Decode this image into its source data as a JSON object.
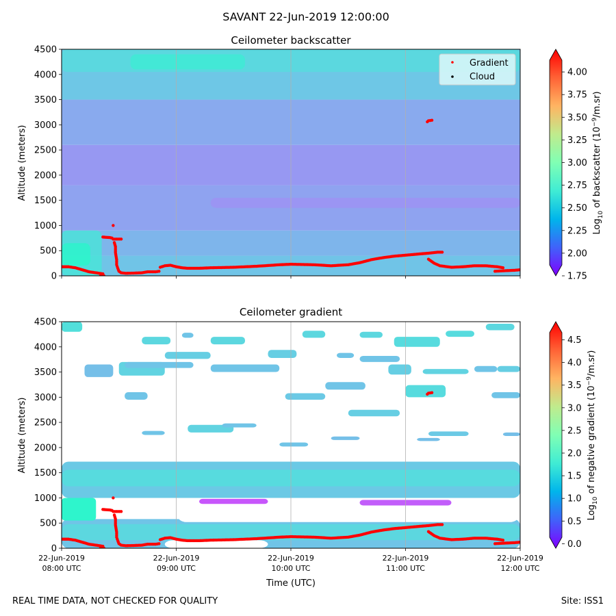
{
  "suptitle": "SAVANT 22-Jun-2019 12:00:00",
  "footer_left": "REAL TIME DATA, NOT CHECKED FOR QUALITY",
  "footer_right": "Site: ISS1",
  "x_label": "Time (UTC)",
  "x_ticks": [
    {
      "t": 8,
      "line1": "22-Jun-2019",
      "line2": "08:00 UTC"
    },
    {
      "t": 9,
      "line1": "22-Jun-2019",
      "line2": "09:00 UTC"
    },
    {
      "t": 10,
      "line1": "22-Jun-2019",
      "line2": "10:00 UTC"
    },
    {
      "t": 11,
      "line1": "22-Jun-2019",
      "line2": "11:00 UTC"
    },
    {
      "t": 12,
      "line1": "22-Jun-2019",
      "line2": "12:00 UTC"
    }
  ],
  "chart_data": [
    {
      "type": "heatmap",
      "title": "Ceilometer backscatter",
      "ylabel": "Altitude (meters)",
      "xlim": [
        8,
        12
      ],
      "ylim": [
        0,
        4500
      ],
      "yticks": [
        0,
        500,
        1000,
        1500,
        2000,
        2500,
        3000,
        3500,
        4000,
        4500
      ],
      "grid": "vertical at hours",
      "colorbar": {
        "label": "Log10 of backscatter (10^-9/m.sr)",
        "label_parts": [
          "Log",
          "10",
          " of backscatter (10",
          "−9",
          "/m.sr)"
        ],
        "min": 1.75,
        "max": 4.25,
        "ticks": [
          "1.75",
          "2.00",
          "2.25",
          "2.50",
          "2.75",
          "3.00",
          "3.25",
          "3.50",
          "3.75",
          "4.00"
        ],
        "colormap": "rainbow"
      },
      "legend": {
        "placement": "top-right",
        "entries": [
          {
            "label": "Gradient",
            "color": "#ff0000"
          },
          {
            "label": "Cloud",
            "color": "#000000"
          }
        ]
      },
      "background_bands": [
        {
          "y0": 0,
          "y1": 400,
          "value": 2.45
        },
        {
          "y0": 400,
          "y1": 900,
          "value": 2.38
        },
        {
          "y0": 900,
          "y1": 1800,
          "value": 2.3
        },
        {
          "y0": 1800,
          "y1": 2600,
          "value": 2.26
        },
        {
          "y0": 2600,
          "y1": 3500,
          "value": 2.33
        },
        {
          "y0": 3500,
          "y1": 4500,
          "value": 2.46
        }
      ],
      "features": [
        {
          "t0": 8.0,
          "t1": 8.35,
          "y0": 0,
          "y1": 900,
          "value": 2.68
        },
        {
          "t0": 8.0,
          "t1": 8.25,
          "y0": 200,
          "y1": 650,
          "value": 2.82
        },
        {
          "t0": 8.0,
          "t1": 12.0,
          "y0": 4050,
          "y1": 4500,
          "value": 2.6
        },
        {
          "t0": 8.6,
          "t1": 9.6,
          "y0": 4100,
          "y1": 4400,
          "value": 2.72
        },
        {
          "t0": 9.3,
          "t1": 12.0,
          "y0": 1350,
          "y1": 1550,
          "value": 2.22
        }
      ]
    },
    {
      "type": "heatmap",
      "title": "Ceilometer gradient",
      "ylabel": "Altitude (meters)",
      "xlim": [
        8,
        12
      ],
      "ylim": [
        0,
        4500
      ],
      "yticks": [
        0,
        500,
        1000,
        1500,
        2000,
        2500,
        3000,
        3500,
        4000,
        4500
      ],
      "grid": "vertical at hours",
      "colorbar": {
        "label": "Log10 of negative gradient (10^-9/m.sr)",
        "label_parts": [
          "Log",
          "10",
          " of negative gradient (10",
          "−9",
          "/m.sr)"
        ],
        "min": -0.1,
        "max": 4.9,
        "ticks": [
          "0.0",
          "0.5",
          "1.0",
          "1.5",
          "2.0",
          "2.5",
          "3.0",
          "3.5",
          "4.0",
          "4.5"
        ],
        "colormap": "rainbow"
      },
      "layers": [
        {
          "y0": 1000,
          "y1": 1720,
          "value": 1.35
        },
        {
          "y0": 1230,
          "y1": 1560,
          "value": 1.55
        },
        {
          "y0": 0,
          "y1": 580,
          "value": 1.3
        },
        {
          "y0": 160,
          "y1": 480,
          "value": 1.5
        }
      ],
      "gaps": [
        {
          "t0": 9.0,
          "t1": 12.0,
          "y0": 520,
          "y1": 960,
          "value": null
        },
        {
          "t0": 8.9,
          "t1": 9.8,
          "y0": 0,
          "y1": 160,
          "value": null
        }
      ],
      "patches": [
        {
          "t0": 8.0,
          "t1": 8.18,
          "y0": 4300,
          "y1": 4500,
          "value": 1.6
        },
        {
          "t0": 8.0,
          "t1": 8.3,
          "y0": 550,
          "y1": 1000,
          "value": 1.95
        },
        {
          "t0": 8.5,
          "t1": 8.9,
          "y0": 3430,
          "y1": 3700,
          "value": 1.45
        },
        {
          "t0": 8.55,
          "t1": 9.15,
          "y0": 3580,
          "y1": 3700,
          "value": 1.3
        },
        {
          "t0": 8.2,
          "t1": 8.45,
          "y0": 3400,
          "y1": 3650,
          "value": 1.25
        },
        {
          "t0": 8.55,
          "t1": 8.75,
          "y0": 2950,
          "y1": 3100,
          "value": 1.3
        },
        {
          "t0": 8.7,
          "t1": 8.95,
          "y0": 4050,
          "y1": 4200,
          "value": 1.5
        },
        {
          "t0": 9.05,
          "t1": 9.15,
          "y0": 4180,
          "y1": 4280,
          "value": 1.3
        },
        {
          "t0": 8.7,
          "t1": 8.9,
          "y0": 2250,
          "y1": 2330,
          "value": 1.3
        },
        {
          "t0": 8.9,
          "t1": 9.3,
          "y0": 3760,
          "y1": 3900,
          "value": 1.4
        },
        {
          "t0": 9.1,
          "t1": 9.5,
          "y0": 2300,
          "y1": 2450,
          "value": 1.45
        },
        {
          "t0": 9.3,
          "t1": 9.9,
          "y0": 3500,
          "y1": 3650,
          "value": 1.3
        },
        {
          "t0": 9.4,
          "t1": 9.7,
          "y0": 2400,
          "y1": 2480,
          "value": 1.3
        },
        {
          "t0": 9.3,
          "t1": 9.6,
          "y0": 4050,
          "y1": 4200,
          "value": 1.5
        },
        {
          "t0": 9.8,
          "t1": 10.05,
          "y0": 3780,
          "y1": 3940,
          "value": 1.4
        },
        {
          "t0": 9.9,
          "t1": 10.15,
          "y0": 2020,
          "y1": 2100,
          "value": 1.3
        },
        {
          "t0": 9.95,
          "t1": 10.3,
          "y0": 2950,
          "y1": 3080,
          "value": 1.35
        },
        {
          "t0": 10.1,
          "t1": 10.3,
          "y0": 4180,
          "y1": 4320,
          "value": 1.5
        },
        {
          "t0": 10.4,
          "t1": 10.55,
          "y0": 3780,
          "y1": 3880,
          "value": 1.3
        },
        {
          "t0": 10.3,
          "t1": 10.65,
          "y0": 3150,
          "y1": 3300,
          "value": 1.3
        },
        {
          "t0": 10.35,
          "t1": 10.6,
          "y0": 2150,
          "y1": 2220,
          "value": 1.25
        },
        {
          "t0": 10.6,
          "t1": 10.95,
          "y0": 3700,
          "y1": 3820,
          "value": 1.3
        },
        {
          "t0": 10.5,
          "t1": 10.95,
          "y0": 2620,
          "y1": 2750,
          "value": 1.4
        },
        {
          "t0": 10.6,
          "t1": 10.8,
          "y0": 4180,
          "y1": 4300,
          "value": 1.5
        },
        {
          "t0": 10.85,
          "t1": 11.05,
          "y0": 3450,
          "y1": 3650,
          "value": 1.4
        },
        {
          "t0": 10.9,
          "t1": 11.3,
          "y0": 4000,
          "y1": 4200,
          "value": 1.55
        },
        {
          "t0": 11.0,
          "t1": 11.35,
          "y0": 3000,
          "y1": 3240,
          "value": 1.55
        },
        {
          "t0": 11.1,
          "t1": 11.3,
          "y0": 2130,
          "y1": 2190,
          "value": 1.25
        },
        {
          "t0": 11.15,
          "t1": 11.55,
          "y0": 3460,
          "y1": 3560,
          "value": 1.45
        },
        {
          "t0": 11.2,
          "t1": 11.55,
          "y0": 2230,
          "y1": 2320,
          "value": 1.35
        },
        {
          "t0": 11.35,
          "t1": 11.6,
          "y0": 4200,
          "y1": 4320,
          "value": 1.55
        },
        {
          "t0": 11.7,
          "t1": 11.95,
          "y0": 4330,
          "y1": 4460,
          "value": 1.5
        },
        {
          "t0": 11.6,
          "t1": 11.8,
          "y0": 3500,
          "y1": 3620,
          "value": 1.3
        },
        {
          "t0": 11.8,
          "t1": 12.0,
          "y0": 3500,
          "y1": 3620,
          "value": 1.4
        },
        {
          "t0": 11.85,
          "t1": 12.0,
          "y0": 2230,
          "y1": 2300,
          "value": 1.25
        },
        {
          "t0": 11.75,
          "t1": 12.0,
          "y0": 2980,
          "y1": 3100,
          "value": 1.3
        },
        {
          "t0": 9.2,
          "t1": 9.8,
          "y0": 880,
          "y1": 980,
          "value": 0.45
        },
        {
          "t0": 10.6,
          "t1": 11.4,
          "y0": 850,
          "y1": 960,
          "value": 0.5
        }
      ]
    }
  ],
  "series_gradient": {
    "name": "Gradient",
    "color": "#ff0000",
    "segments": [
      [
        [
          8.0,
          180
        ],
        [
          8.06,
          180
        ],
        [
          8.12,
          160
        ],
        [
          8.18,
          120
        ],
        [
          8.24,
          80
        ],
        [
          8.3,
          60
        ],
        [
          8.36,
          40
        ]
      ],
      [
        [
          8.37,
          0
        ],
        [
          8.34,
          0
        ],
        [
          8.36,
          20
        ]
      ],
      [
        [
          8.36,
          770
        ],
        [
          8.42,
          760
        ],
        [
          8.44,
          750
        ]
      ],
      [
        [
          8.45,
          730
        ],
        [
          8.52,
          730
        ]
      ],
      [
        [
          8.45,
          1000
        ]
      ],
      [
        [
          8.46,
          660
        ],
        [
          8.47,
          580
        ],
        [
          8.47,
          460
        ],
        [
          8.48,
          320
        ],
        [
          8.48,
          220
        ],
        [
          8.49,
          150
        ],
        [
          8.5,
          90
        ],
        [
          8.52,
          60
        ],
        [
          8.56,
          50
        ],
        [
          8.64,
          55
        ],
        [
          8.7,
          60
        ],
        [
          8.75,
          80
        ],
        [
          8.82,
          80
        ],
        [
          8.85,
          90
        ]
      ],
      [
        [
          8.86,
          170
        ],
        [
          8.9,
          200
        ],
        [
          8.95,
          210
        ],
        [
          9.0,
          180
        ],
        [
          9.05,
          160
        ],
        [
          9.1,
          150
        ],
        [
          9.2,
          150
        ],
        [
          9.3,
          160
        ],
        [
          9.5,
          170
        ],
        [
          9.7,
          190
        ],
        [
          9.9,
          220
        ],
        [
          10.0,
          230
        ],
        [
          10.2,
          220
        ],
        [
          10.35,
          200
        ],
        [
          10.5,
          220
        ],
        [
          10.6,
          260
        ],
        [
          10.7,
          320
        ],
        [
          10.8,
          360
        ],
        [
          10.9,
          390
        ],
        [
          11.0,
          410
        ],
        [
          11.1,
          430
        ],
        [
          11.2,
          450
        ],
        [
          11.28,
          470
        ],
        [
          11.32,
          470
        ]
      ],
      [
        [
          11.19,
          3060
        ],
        [
          11.2,
          3080
        ],
        [
          11.23,
          3090
        ]
      ],
      [
        [
          11.2,
          330
        ],
        [
          11.25,
          250
        ],
        [
          11.3,
          200
        ],
        [
          11.4,
          170
        ],
        [
          11.5,
          180
        ],
        [
          11.6,
          200
        ],
        [
          11.7,
          200
        ],
        [
          11.8,
          180
        ],
        [
          11.85,
          160
        ]
      ],
      [
        [
          11.78,
          90
        ],
        [
          11.85,
          100
        ],
        [
          11.95,
          110
        ],
        [
          12.0,
          120
        ]
      ]
    ]
  }
}
